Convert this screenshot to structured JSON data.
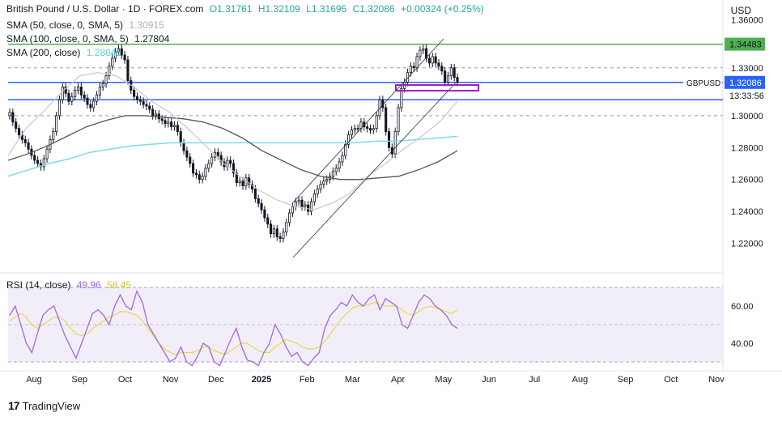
{
  "header": {
    "symbol_line": "British Pound / U.S. Dollar · 1D · FOREX.com",
    "open": "O1.31761",
    "high": "H1.32109",
    "low": "L1.31695",
    "close": "C1.32086",
    "change": "+0.00324 (+0.25%)",
    "currency": "USD"
  },
  "indicators": [
    {
      "label": "SMA (50, close, 0, SMA, 5)",
      "value": "1.30915",
      "color": "#c8c8c8"
    },
    {
      "label": "SMA (100, close, 0, SMA, 5)",
      "value": "1.27804",
      "color": "#555555"
    },
    {
      "label": "SMA (200, close)",
      "value": "1.28641",
      "color": "#7fd8ea"
    }
  ],
  "rsi_legend": {
    "label": "RSI (14, close)",
    "rsi": "49.96",
    "ma": "58.45",
    "rsi_color": "#a368d8",
    "ma_color": "#e6d94a"
  },
  "footer": {
    "brand": "TradingView"
  },
  "chart_data": {
    "type": "candlestick",
    "symbol": "GBPUSD",
    "price_axis": {
      "ticks": [
        "1.36000",
        "1.34483",
        "1.33000",
        "1.32086",
        "1.30000",
        "1.28000",
        "1.26000",
        "1.24000",
        "1.22000"
      ],
      "range": [
        1.205,
        1.37
      ]
    },
    "time_axis": {
      "labels": [
        "Aug",
        "Sep",
        "Oct",
        "Nov",
        "Dec",
        "2025",
        "Feb",
        "Mar",
        "Apr",
        "May",
        "Jun",
        "Jul",
        "Aug",
        "Sep",
        "Oct",
        "Nov"
      ]
    },
    "levels": [
      {
        "price": 1.34483,
        "label": "1.34483",
        "color": "#4caf50"
      },
      {
        "price": 1.33,
        "label": "1.33000",
        "color": "#9e9e9e",
        "dashed": true
      },
      {
        "price": 1.32086,
        "label": "1.32086",
        "color": "#2962ff",
        "tag": "GBPUSD",
        "time": "13:33:56"
      },
      {
        "price": 1.31,
        "label": "1.31000",
        "color": "#2962ff"
      },
      {
        "price": 1.3,
        "label": "1.30000",
        "color": "#9e9e9e",
        "dashed": true
      }
    ],
    "closes": [
      1.302,
      1.296,
      1.292,
      1.288,
      1.285,
      1.283,
      1.279,
      1.275,
      1.272,
      1.27,
      1.268,
      1.273,
      1.279,
      1.285,
      1.29,
      1.3,
      1.31,
      1.318,
      1.314,
      1.309,
      1.312,
      1.316,
      1.318,
      1.313,
      1.311,
      1.307,
      1.305,
      1.309,
      1.313,
      1.318,
      1.32,
      1.325,
      1.331,
      1.336,
      1.34,
      1.342,
      1.338,
      1.335,
      1.322,
      1.316,
      1.312,
      1.31,
      1.309,
      1.307,
      1.306,
      1.304,
      1.3,
      1.301,
      1.298,
      1.297,
      1.295,
      1.296,
      1.293,
      1.294,
      1.29,
      1.283,
      1.278,
      1.274,
      1.27,
      1.264,
      1.263,
      1.26,
      1.262,
      1.267,
      1.27,
      1.274,
      1.277,
      1.275,
      1.271,
      1.268,
      1.272,
      1.27,
      1.264,
      1.258,
      1.259,
      1.256,
      1.261,
      1.257,
      1.254,
      1.248,
      1.245,
      1.241,
      1.236,
      1.232,
      1.226,
      1.229,
      1.224,
      1.223,
      1.227,
      1.233,
      1.239,
      1.243,
      1.246,
      1.247,
      1.243,
      1.244,
      1.24,
      1.246,
      1.251,
      1.254,
      1.257,
      1.259,
      1.26,
      1.262,
      1.265,
      1.267,
      1.271,
      1.275,
      1.282,
      1.288,
      1.291,
      1.292,
      1.292,
      1.296,
      1.293,
      1.292,
      1.291,
      1.292,
      1.3,
      1.31,
      1.305,
      1.29,
      1.28,
      1.276,
      1.29,
      1.305,
      1.317,
      1.321,
      1.327,
      1.331,
      1.33,
      1.337,
      1.341,
      1.342,
      1.336,
      1.333,
      1.337,
      1.333,
      1.331,
      1.328,
      1.321,
      1.325,
      1.33,
      1.324,
      1.321
    ],
    "sma50": [
      1.275,
      1.292,
      1.303,
      1.315,
      1.325,
      1.327,
      1.325,
      1.318,
      1.309,
      1.302,
      1.292,
      1.281,
      1.27,
      1.261,
      1.253,
      1.247,
      1.243,
      1.241,
      1.245,
      1.251,
      1.262,
      1.27,
      1.279,
      1.287,
      1.296,
      1.309
    ],
    "sma100": [
      1.272,
      1.276,
      1.281,
      1.287,
      1.293,
      1.297,
      1.3,
      1.3,
      1.299,
      1.298,
      1.296,
      1.292,
      1.286,
      1.278,
      1.272,
      1.266,
      1.262,
      1.26,
      1.26,
      1.261,
      1.262,
      1.266,
      1.271,
      1.278
    ],
    "sma200": [
      1.262,
      1.266,
      1.27,
      1.273,
      1.277,
      1.279,
      1.281,
      1.282,
      1.283,
      1.283,
      1.283,
      1.283,
      1.283,
      1.283,
      1.283,
      1.283,
      1.283,
      1.283,
      1.284,
      1.284,
      1.285,
      1.286,
      1.287
    ],
    "rsi_axis": {
      "ticks": [
        "60.00",
        "40.00"
      ]
    },
    "rsi": [
      55,
      60,
      50,
      40,
      35,
      45,
      55,
      58,
      60,
      52,
      44,
      38,
      32,
      40,
      48,
      56,
      58,
      55,
      50,
      60,
      66,
      60,
      58,
      68,
      62,
      50,
      45,
      40,
      35,
      30,
      32,
      38,
      30,
      28,
      33,
      40,
      38,
      30,
      28,
      35,
      42,
      48,
      38,
      31,
      30,
      28,
      35,
      40,
      50,
      45,
      38,
      33,
      35,
      30,
      28,
      32,
      35,
      48,
      55,
      58,
      62,
      60,
      66,
      62,
      60,
      64,
      66,
      58,
      64,
      62,
      60,
      50,
      48,
      55,
      62,
      66,
      64,
      60,
      58,
      55,
      50,
      48
    ],
    "rsi_ma": [
      52,
      54,
      56,
      54,
      50,
      48,
      50,
      52,
      54,
      54,
      52,
      48,
      45,
      44,
      45,
      48,
      50,
      52,
      54,
      55,
      57,
      57,
      56,
      55,
      52,
      48,
      44,
      40,
      37,
      35,
      34,
      35,
      35,
      35,
      36,
      38,
      38,
      36,
      35,
      34,
      36,
      38,
      40,
      40,
      38,
      36,
      35,
      35,
      38,
      40,
      42,
      41,
      40,
      38,
      37,
      37,
      38,
      41,
      45,
      49,
      53,
      56,
      59,
      60,
      60,
      61,
      62,
      61,
      60,
      60,
      60,
      58,
      56,
      55,
      57,
      59,
      60,
      59,
      58,
      57,
      56,
      58
    ]
  }
}
